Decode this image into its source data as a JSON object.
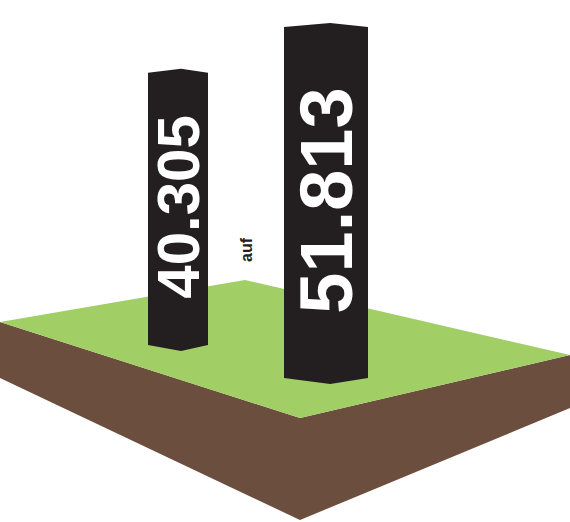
{
  "chart_data": {
    "type": "bar",
    "categories": [
      null,
      null
    ],
    "values": [
      40305,
      51813
    ],
    "value_labels": [
      "40.305",
      "51.813"
    ],
    "data_labels": true,
    "tick_labels": false,
    "annotation": "auf",
    "color": "#231f20"
  }
}
